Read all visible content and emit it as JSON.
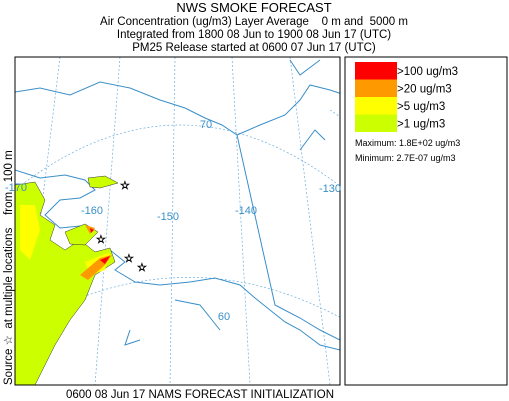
{
  "header": {
    "title": "NWS SMOKE FORECAST",
    "line1": "Air Concentration (ug/m3) Layer Average    0 m and  5000 m",
    "line2": "Integrated from 1800 08 Jun to 1900 08 Jun 17 (UTC)",
    "line3": "PM25 Release started at 0600 07 Jun 17 (UTC)"
  },
  "side_label": "Source ☆  at multiple locations    from   100 m",
  "footer": "0600 08 Jun 17 NAMS FORECAST INITIALIZATION",
  "map": {
    "labels": [
      "-170",
      "-160",
      "-150",
      "-140",
      "-130",
      "70",
      "60"
    ]
  },
  "legend": {
    "items": [
      {
        "label": ">100 ug/m3",
        "color": "#ff0000"
      },
      {
        "label": ">20 ug/m3",
        "color": "#ff9900"
      },
      {
        "label": ">5 ug/m3",
        "color": "#ffff00"
      },
      {
        "label": ">1 ug/m3",
        "color": "#ccff00"
      }
    ],
    "maximum": "Maximum: 1.8E+02 ug/m3",
    "minimum": "Minimum: 2.7E-07 ug/m3"
  }
}
